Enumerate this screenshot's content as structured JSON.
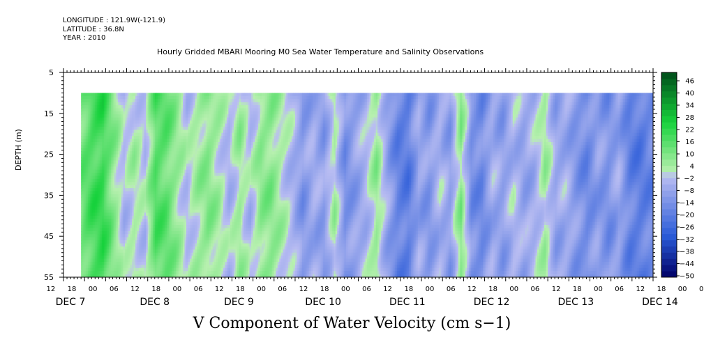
{
  "meta": {
    "longitude": "LONGITUDE : 121.9W(-121.9)",
    "latitude": "LATITUDE : 36.8N",
    "year": "YEAR : 2010"
  },
  "chart_data": {
    "type": "heatmap",
    "title": "Hourly Gridded MBARI Mooring M0 Sea Water Temperature and Salinity Observations",
    "subtitle": "V Component of Water Velocity (cm s−1)",
    "ylabel": "DEPTH (m)",
    "xlabel": "",
    "ylim": [
      55,
      5
    ],
    "y_ticks": [
      5,
      15,
      25,
      35,
      45,
      55
    ],
    "data_depth_range": [
      10,
      55
    ],
    "x_range_hours": [
      0,
      168
    ],
    "x_hour_labels": [
      "12",
      "18",
      "00",
      "06",
      "12",
      "18",
      "00",
      "06",
      "12",
      "18",
      "00",
      "06",
      "12",
      "18",
      "00",
      "06",
      "12",
      "18",
      "00",
      "06",
      "12",
      "18",
      "00",
      "06",
      "12",
      "18",
      "00",
      "06",
      "12",
      "18",
      "00",
      "06"
    ],
    "x_day_labels": [
      {
        "label": "DEC  7",
        "hour": 0
      },
      {
        "label": "DEC  8",
        "hour": 24
      },
      {
        "label": "DEC  9",
        "hour": 48
      },
      {
        "label": "DEC 10",
        "hour": 72
      },
      {
        "label": "DEC 11",
        "hour": 96
      },
      {
        "label": "DEC 12",
        "hour": 120
      },
      {
        "label": "DEC 13",
        "hour": 144
      },
      {
        "label": "DEC 14",
        "hour": 168
      }
    ],
    "colorbar": {
      "labels": [
        "46",
        "40",
        "34",
        "28",
        "22",
        "16",
        "10",
        "4",
        "−2",
        "−8",
        "−14",
        "−20",
        "−26",
        "−32",
        "−38",
        "−44",
        "−50"
      ],
      "levels": [
        -50,
        -47,
        -44,
        -41,
        -38,
        -35,
        -32,
        -29,
        -26,
        -23,
        -20,
        -17,
        -14,
        -11,
        -8,
        -5,
        -2,
        1,
        4,
        7,
        10,
        13,
        16,
        19,
        22,
        25,
        28,
        31,
        34,
        37,
        40,
        43,
        46,
        49
      ],
      "colors": {
        "deep_negative": "#000066",
        "negative": "#2a5bd8",
        "near_zero_negative": "#b9bdf2",
        "near_zero_positive": "#b8f0b0",
        "positive": "#17d23c",
        "deep_positive": "#004d1a"
      }
    },
    "data_start_hour": 5,
    "data_end_hour": 168,
    "column_profile": [
      {
        "hour": 5,
        "v": 12
      },
      {
        "hour": 8,
        "v": 18
      },
      {
        "hour": 11,
        "v": 20
      },
      {
        "hour": 14,
        "v": 8
      },
      {
        "hour": 17,
        "v": -3
      },
      {
        "hour": 20,
        "v": 3
      },
      {
        "hour": 23,
        "v": -2
      },
      {
        "hour": 26,
        "v": 16
      },
      {
        "hour": 29,
        "v": 14
      },
      {
        "hour": 32,
        "v": 6
      },
      {
        "hour": 35,
        "v": -2
      },
      {
        "hour": 38,
        "v": 4
      },
      {
        "hour": 41,
        "v": 8
      },
      {
        "hour": 44,
        "v": 3
      },
      {
        "hour": 47,
        "v": -4
      },
      {
        "hour": 50,
        "v": 5
      },
      {
        "hour": 53,
        "v": -3
      },
      {
        "hour": 56,
        "v": 7
      },
      {
        "hour": 59,
        "v": 8
      },
      {
        "hour": 62,
        "v": 2
      },
      {
        "hour": 65,
        "v": -4
      },
      {
        "hour": 68,
        "v": -12
      },
      {
        "hour": 71,
        "v": -6
      },
      {
        "hour": 74,
        "v": -10
      },
      {
        "hour": 77,
        "v": 3
      },
      {
        "hour": 80,
        "v": -14
      },
      {
        "hour": 83,
        "v": -9
      },
      {
        "hour": 86,
        "v": -4
      },
      {
        "hour": 89,
        "v": 6
      },
      {
        "hour": 92,
        "v": -8
      },
      {
        "hour": 95,
        "v": -18
      },
      {
        "hour": 98,
        "v": -20
      },
      {
        "hour": 101,
        "v": -8
      },
      {
        "hour": 104,
        "v": -12
      },
      {
        "hour": 107,
        "v": -4
      },
      {
        "hour": 110,
        "v": -10
      },
      {
        "hour": 113,
        "v": 8
      },
      {
        "hour": 116,
        "v": -14
      },
      {
        "hour": 119,
        "v": -16
      },
      {
        "hour": 122,
        "v": -6
      },
      {
        "hour": 125,
        "v": -10
      },
      {
        "hour": 128,
        "v": -3
      },
      {
        "hour": 131,
        "v": -8
      },
      {
        "hour": 134,
        "v": -5
      },
      {
        "hour": 137,
        "v": 4
      },
      {
        "hour": 140,
        "v": -8
      },
      {
        "hour": 143,
        "v": -6
      },
      {
        "hour": 146,
        "v": -12
      },
      {
        "hour": 149,
        "v": -16
      },
      {
        "hour": 152,
        "v": -10
      },
      {
        "hour": 155,
        "v": -14
      },
      {
        "hour": 158,
        "v": -8
      },
      {
        "hour": 161,
        "v": -18
      },
      {
        "hour": 164,
        "v": -20
      },
      {
        "hour": 168,
        "v": -16
      }
    ]
  }
}
